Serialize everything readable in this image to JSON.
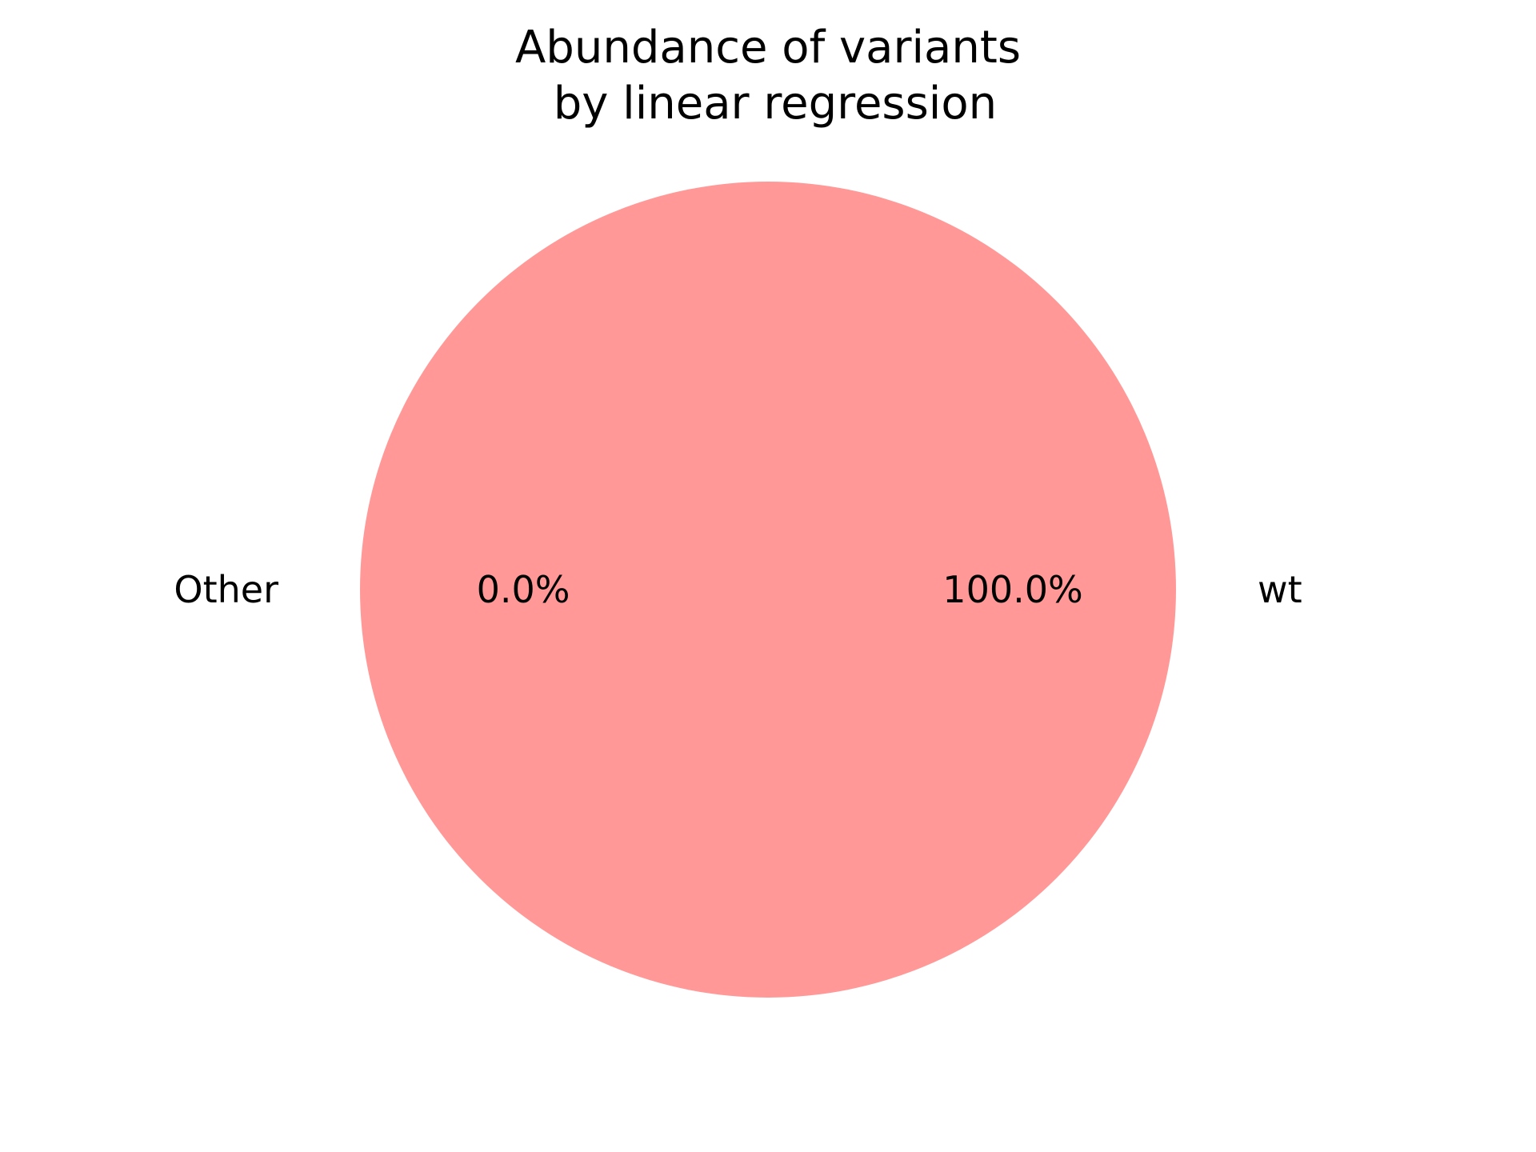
{
  "chart_data": {
    "type": "pie",
    "title": "Abundance of variants\n by linear regression",
    "title_lines": [
      "Abundance of variants",
      " by linear regression"
    ],
    "slices": [
      {
        "label": "wt",
        "value": 100.0,
        "percent_label": "100.0%",
        "color": "#ff9896"
      },
      {
        "label": "Other",
        "value": 0.0,
        "percent_label": "0.0%",
        "color": "#1f77b4"
      }
    ],
    "start_angle_deg": 180,
    "direction": "counterclockwise",
    "legend": "none"
  }
}
